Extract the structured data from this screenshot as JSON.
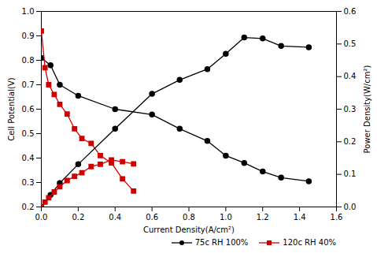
{
  "chart_data": {
    "type": "line",
    "xlabel": "Current Density(A/cm²)",
    "ylabel": "Cell Potential(V)",
    "y2label": "Power Density(W/cm²)",
    "series": [
      {
        "color": "black",
        "marker": "circle",
        "x": [
          0.0,
          0.05,
          0.1,
          0.2,
          0.4,
          0.6,
          0.75,
          0.9,
          1.0,
          1.1,
          1.2,
          1.3,
          1.45
        ],
        "values": [
          0.81,
          0.78,
          0.7,
          0.655,
          0.6,
          0.578,
          0.52,
          0.47,
          0.41,
          0.38,
          0.345,
          0.32,
          0.305
        ]
      },
      {
        "name": "75c RH 100%",
        "color": "black",
        "marker": "circle",
        "axis": "y2",
        "x": [
          0.0,
          0.05,
          0.1,
          0.2,
          0.4,
          0.6,
          0.75,
          0.9,
          1.0,
          1.1,
          1.2,
          1.3,
          1.45
        ],
        "values": [
          0.0,
          0.037,
          0.073,
          0.131,
          0.24,
          0.347,
          0.39,
          0.423,
          0.47,
          0.52,
          0.517,
          0.494,
          0.49
        ]
      },
      {
        "color": "#cc0000",
        "marker": "square",
        "x": [
          0.0,
          0.02,
          0.04,
          0.07,
          0.1,
          0.14,
          0.18,
          0.22,
          0.27,
          0.32,
          0.38,
          0.44,
          0.5
        ],
        "values": [
          0.92,
          0.77,
          0.7,
          0.66,
          0.62,
          0.58,
          0.52,
          0.48,
          0.46,
          0.41,
          0.38,
          0.315,
          0.265
        ]
      },
      {
        "name": "120c RH 40%",
        "color": "#cc0000",
        "marker": "square",
        "axis": "y2",
        "x": [
          0.0,
          0.02,
          0.04,
          0.07,
          0.1,
          0.14,
          0.18,
          0.22,
          0.27,
          0.32,
          0.38,
          0.44,
          0.5
        ],
        "values": [
          0.0,
          0.015,
          0.028,
          0.046,
          0.062,
          0.081,
          0.094,
          0.105,
          0.124,
          0.131,
          0.144,
          0.139,
          0.132
        ]
      }
    ],
    "xlim": [
      0,
      1.6
    ],
    "ylim": [
      0.2,
      1.0
    ],
    "y2lim": [
      0.0,
      0.6
    ],
    "xticks": [
      {
        "value": 0,
        "label": "0.0"
      },
      0.2,
      0.4,
      0.6,
      0.8,
      {
        "value": 1,
        "label": "1.0"
      },
      1.2,
      1.4,
      1.6
    ],
    "yticks": [
      0.2,
      0.3,
      0.4,
      0.5,
      0.6,
      0.7,
      0.8,
      0.9,
      {
        "value": 1,
        "label": "1.0"
      }
    ],
    "y2ticks": [
      {
        "value": 0,
        "label": "0.0"
      },
      0.1,
      0.2,
      0.3,
      0.4,
      0.5,
      0.6
    ],
    "legend": "lower right"
  }
}
